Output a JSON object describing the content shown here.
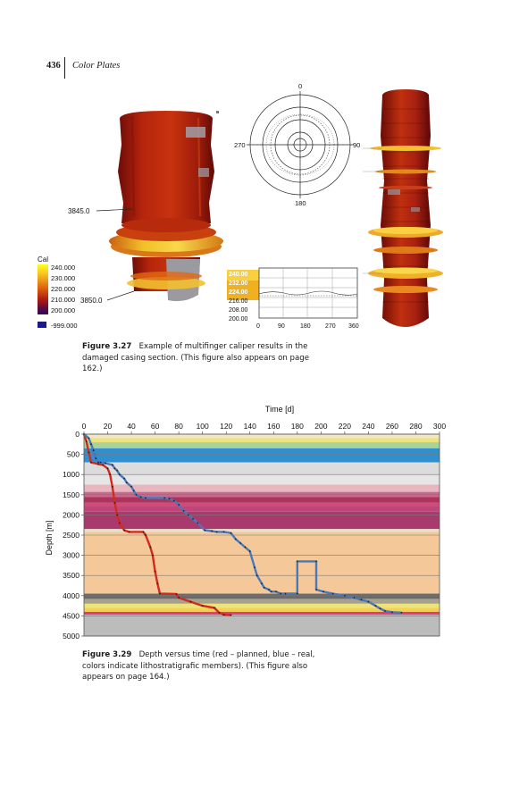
{
  "header": {
    "page_number": "436",
    "running_title": "Color Plates"
  },
  "figure_3_27": {
    "legend_title": "Cal",
    "legend_values": [
      "240.000",
      "230.000",
      "220.000",
      "210.000",
      "200.000"
    ],
    "legend_null": "-999.000",
    "depth_labels": [
      "3845.0",
      "3850.0"
    ],
    "polar_labels": [
      "0",
      "90",
      "180",
      "270"
    ],
    "inset_y_labels": [
      "240.00",
      "232.00",
      "224.00",
      "216.00",
      "208.00",
      "200.00"
    ],
    "inset_x_labels": [
      "0",
      "90",
      "180",
      "270",
      "360"
    ]
  },
  "caption_3_27": {
    "label": "Figure 3.27",
    "text": "Example of multifinger caliper results in the damaged casing section. (This figure also appears on page 162.)"
  },
  "chart_data": {
    "type": "line",
    "title": "",
    "xlabel": "Time [d]",
    "ylabel": "Depth [m]",
    "xlim": [
      0,
      300
    ],
    "ylim": [
      0,
      5000
    ],
    "x_ticks": [
      "0",
      "20",
      "40",
      "60",
      "80",
      "100",
      "120",
      "140",
      "160",
      "180",
      "200",
      "220",
      "240",
      "260",
      "280",
      "300"
    ],
    "y_ticks": [
      "0",
      "500",
      "1000",
      "1500",
      "2000",
      "2500",
      "3000",
      "3500",
      "4000",
      "4500",
      "5000"
    ],
    "x_axis_position": "top",
    "grid": true,
    "colors": {
      "planned": "#d42a1e",
      "real": "#4a78b8"
    },
    "bands": [
      {
        "from": 0,
        "to": 100,
        "color": "#f2e8c8"
      },
      {
        "from": 100,
        "to": 200,
        "color": "#eee27a"
      },
      {
        "from": 200,
        "to": 350,
        "color": "#a8d49a"
      },
      {
        "from": 350,
        "to": 700,
        "color": "#2f8fcf"
      },
      {
        "from": 700,
        "to": 1000,
        "color": "#dcdcdc"
      },
      {
        "from": 1000,
        "to": 1250,
        "color": "#e6e6e6"
      },
      {
        "from": 1250,
        "to": 1430,
        "color": "#e8b6bc"
      },
      {
        "from": 1430,
        "to": 1560,
        "color": "#c86a8e"
      },
      {
        "from": 1560,
        "to": 1700,
        "color": "#b0325c"
      },
      {
        "from": 1700,
        "to": 1780,
        "color": "#d24a78"
      },
      {
        "from": 1780,
        "to": 1920,
        "color": "#c0457a"
      },
      {
        "from": 1920,
        "to": 2350,
        "color": "#a83a6e"
      },
      {
        "from": 2350,
        "to": 2420,
        "color": "#e8e0c8"
      },
      {
        "from": 2420,
        "to": 3950,
        "color": "#f5c89a"
      },
      {
        "from": 3950,
        "to": 4080,
        "color": "#6a6a6a"
      },
      {
        "from": 4080,
        "to": 4200,
        "color": "#a6a08c"
      },
      {
        "from": 4200,
        "to": 4300,
        "color": "#eee27a"
      },
      {
        "from": 4300,
        "to": 4400,
        "color": "#f2d24e"
      },
      {
        "from": 4400,
        "to": 4470,
        "color": "#e83a7a"
      },
      {
        "from": 4470,
        "to": 5000,
        "color": "#bcbcbc"
      }
    ],
    "series": [
      {
        "key": "planned",
        "points": [
          [
            0,
            0
          ],
          [
            2,
            180
          ],
          [
            4,
            450
          ],
          [
            6,
            700
          ],
          [
            12,
            740
          ],
          [
            16,
            760
          ],
          [
            20,
            850
          ],
          [
            22,
            1000
          ],
          [
            24,
            1300
          ],
          [
            26,
            1700
          ],
          [
            28,
            2000
          ],
          [
            30,
            2200
          ],
          [
            34,
            2380
          ],
          [
            38,
            2420
          ],
          [
            50,
            2420
          ],
          [
            52,
            2500
          ],
          [
            56,
            2800
          ],
          [
            58,
            3000
          ],
          [
            60,
            3400
          ],
          [
            62,
            3700
          ],
          [
            64,
            3950
          ],
          [
            78,
            3960
          ],
          [
            80,
            4050
          ],
          [
            90,
            4150
          ],
          [
            100,
            4250
          ],
          [
            110,
            4300
          ],
          [
            114,
            4420
          ],
          [
            118,
            4470
          ],
          [
            124,
            4480
          ]
        ]
      },
      {
        "key": "real",
        "points": [
          [
            0,
            0
          ],
          [
            4,
            100
          ],
          [
            6,
            250
          ],
          [
            8,
            400
          ],
          [
            10,
            600
          ],
          [
            12,
            700
          ],
          [
            14,
            700
          ],
          [
            18,
            720
          ],
          [
            24,
            760
          ],
          [
            26,
            850
          ],
          [
            28,
            900
          ],
          [
            30,
            1000
          ],
          [
            34,
            1100
          ],
          [
            36,
            1200
          ],
          [
            40,
            1300
          ],
          [
            42,
            1400
          ],
          [
            44,
            1500
          ],
          [
            48,
            1560
          ],
          [
            52,
            1580
          ],
          [
            68,
            1580
          ],
          [
            72,
            1600
          ],
          [
            76,
            1650
          ],
          [
            80,
            1750
          ],
          [
            84,
            1900
          ],
          [
            88,
            2000
          ],
          [
            92,
            2100
          ],
          [
            96,
            2200
          ],
          [
            102,
            2380
          ],
          [
            108,
            2400
          ],
          [
            112,
            2420
          ],
          [
            118,
            2420
          ],
          [
            124,
            2450
          ],
          [
            128,
            2600
          ],
          [
            132,
            2700
          ],
          [
            136,
            2800
          ],
          [
            140,
            2900
          ],
          [
            144,
            3300
          ],
          [
            146,
            3500
          ],
          [
            150,
            3700
          ],
          [
            152,
            3800
          ],
          [
            156,
            3850
          ],
          [
            158,
            3900
          ],
          [
            162,
            3900
          ],
          [
            166,
            3950
          ],
          [
            170,
            3950
          ],
          [
            180,
            3950
          ],
          [
            180,
            3150
          ],
          [
            196,
            3150
          ],
          [
            196,
            3850
          ],
          [
            202,
            3900
          ],
          [
            210,
            3950
          ],
          [
            220,
            4000
          ],
          [
            228,
            4050
          ],
          [
            234,
            4100
          ],
          [
            240,
            4150
          ],
          [
            246,
            4250
          ],
          [
            250,
            4320
          ],
          [
            254,
            4380
          ],
          [
            260,
            4410
          ],
          [
            268,
            4420
          ]
        ]
      }
    ]
  },
  "caption_3_29": {
    "label": "Figure 3.29",
    "text": "Depth versus time (red – planned, blue – real, colors indicate lithostratigrafic members). (This figure also appears on page 164.)"
  }
}
